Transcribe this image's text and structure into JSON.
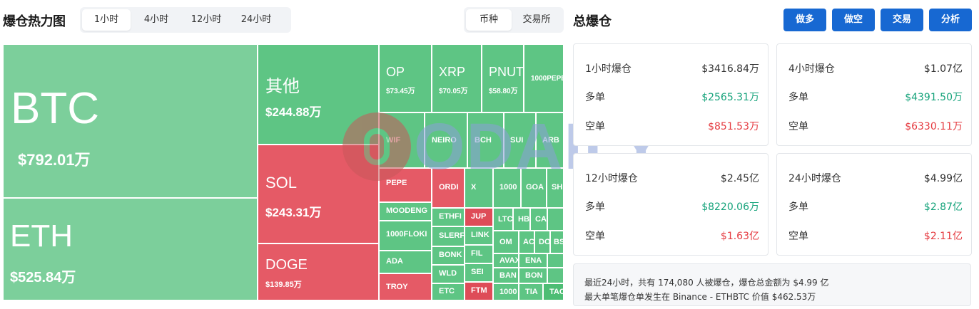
{
  "header": {
    "title": "爆仓热力图",
    "time_tabs": [
      "1小时",
      "4小时",
      "12小时",
      "24小时"
    ],
    "view_tabs": [
      "币种",
      "交易所"
    ],
    "right_title": "总爆仓",
    "actions": [
      "做多",
      "做空",
      "交易",
      "分析"
    ]
  },
  "treemap": {
    "btc": {
      "symbol": "BTC",
      "amount": "$792.01万"
    },
    "eth": {
      "symbol": "ETH",
      "amount": "$525.84万"
    },
    "other": {
      "symbol": "其他",
      "amount": "$244.88万"
    },
    "sol": {
      "symbol": "SOL",
      "amount": "$243.31万"
    },
    "doge": {
      "symbol": "DOGE",
      "amount": "$139.85万"
    },
    "op": {
      "symbol": "OP",
      "amount": "$73.45万"
    },
    "xrp": {
      "symbol": "XRP",
      "amount": "$70.05万"
    },
    "pnut": {
      "symbol": "PNUT",
      "amount": "$58.80万"
    },
    "pepe1000": {
      "symbol": "1000PEPE"
    },
    "wif": {
      "symbol": "WIF"
    },
    "neiro": {
      "symbol": "NEIRO"
    },
    "bch": {
      "symbol": "BCH"
    },
    "sui": {
      "symbol": "SUI"
    },
    "arb": {
      "symbol": "ARB"
    },
    "pepe": {
      "symbol": "PEPE"
    },
    "moodeng": {
      "symbol": "MOODENG"
    },
    "floki1000": {
      "symbol": "1000FLOKI"
    },
    "ada": {
      "symbol": "ADA"
    },
    "troy": {
      "symbol": "TROY"
    },
    "ordi": {
      "symbol": "ORDI"
    },
    "x": {
      "symbol": "X"
    },
    "t1000a": {
      "symbol": "1000"
    },
    "goat": {
      "symbol": "GOA"
    },
    "sh": {
      "symbol": "SH"
    },
    "ethfi": {
      "symbol": "ETHFI"
    },
    "jup": {
      "symbol": "JUP"
    },
    "slerf": {
      "symbol": "SLERF"
    },
    "link": {
      "symbol": "LINK"
    },
    "ltc": {
      "symbol": "LTC"
    },
    "hb": {
      "symbol": "HB"
    },
    "ca": {
      "symbol": "CA"
    },
    "bonk": {
      "symbol": "BONK"
    },
    "fil": {
      "symbol": "FIL"
    },
    "om": {
      "symbol": "OM"
    },
    "ac": {
      "symbol": "AC"
    },
    "do": {
      "symbol": "DO"
    },
    "bs": {
      "symbol": "BS"
    },
    "wld": {
      "symbol": "WLD"
    },
    "sei": {
      "symbol": "SEI"
    },
    "avax": {
      "symbol": "AVAX"
    },
    "ena": {
      "symbol": "ENA"
    },
    "ban": {
      "symbol": "BAN"
    },
    "bon": {
      "symbol": "BON"
    },
    "etc": {
      "symbol": "ETC"
    },
    "ftm": {
      "symbol": "FTM"
    },
    "t1000b": {
      "symbol": "1000"
    },
    "tia": {
      "symbol": "TIA"
    },
    "tao": {
      "symbol": "TAO"
    }
  },
  "watermark": "ODAILY",
  "stats": {
    "h1": {
      "title": "1小时爆仓",
      "total": "$3416.84万",
      "long_label": "多单",
      "long": "$2565.31万",
      "short_label": "空单",
      "short": "$851.53万"
    },
    "h4": {
      "title": "4小时爆仓",
      "total": "$1.07亿",
      "long_label": "多单",
      "long": "$4391.50万",
      "short_label": "空单",
      "short": "$6330.11万"
    },
    "h12": {
      "title": "12小时爆仓",
      "total": "$2.45亿",
      "long_label": "多单",
      "long": "$8220.06万",
      "short_label": "空单",
      "short": "$1.63亿"
    },
    "h24": {
      "title": "24小时爆仓",
      "total": "$4.99亿",
      "long_label": "多单",
      "long": "$2.87亿",
      "short_label": "空单",
      "short": "$2.11亿"
    }
  },
  "summary": {
    "line1": "最近24小时，共有 174,080 人被爆仓，爆仓总金额为 $4.99 亿",
    "line2": "最大单笔爆仓单发生在 Binance - ETHBTC 价值 $462.53万"
  },
  "colors": {
    "long_green": "#16a37b",
    "short_red": "#e5393f",
    "accent": "#1768d2",
    "tile_green": "#5ec584",
    "tile_red": "#e55a66"
  }
}
